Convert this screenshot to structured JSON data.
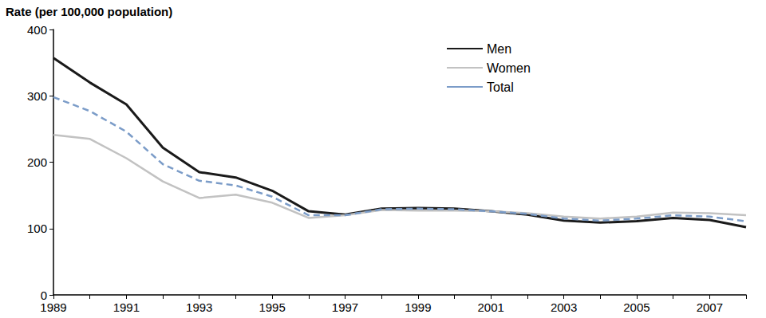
{
  "chart_data": {
    "type": "line",
    "ylabel": "Rate (per 100,000 population)",
    "categories": [
      "1989",
      null,
      "1991",
      null,
      "1993",
      null,
      "1995",
      null,
      "1997",
      null,
      "1999",
      null,
      "2001",
      null,
      "2003",
      null,
      "2005",
      null,
      "2007",
      null
    ],
    "series": [
      {
        "name": "Men",
        "color": "#1a1a1a",
        "line_style": "solid",
        "values": [
          357,
          320,
          287,
          222,
          185,
          177,
          157,
          126,
          121,
          130,
          131,
          130,
          126,
          121,
          112,
          109,
          111,
          116,
          113,
          102
        ]
      },
      {
        "name": "Women",
        "color": "#c2c2c2",
        "line_style": "solid",
        "values": [
          241,
          235,
          206,
          171,
          146,
          151,
          139,
          116,
          120,
          128,
          127,
          127,
          126,
          123,
          118,
          115,
          118,
          124,
          123,
          120
        ]
      },
      {
        "name": "Total",
        "color": "#7b9cc8",
        "line_style": "dashed",
        "values": [
          298,
          277,
          246,
          197,
          172,
          165,
          148,
          120,
          120,
          129,
          130,
          129,
          126,
          122,
          115,
          112,
          115,
          120,
          118,
          111
        ]
      }
    ],
    "ylim": [
      0,
      400
    ],
    "yticks": [
      0,
      100,
      200,
      300,
      400
    ],
    "grid": false,
    "legend": "upper right"
  }
}
